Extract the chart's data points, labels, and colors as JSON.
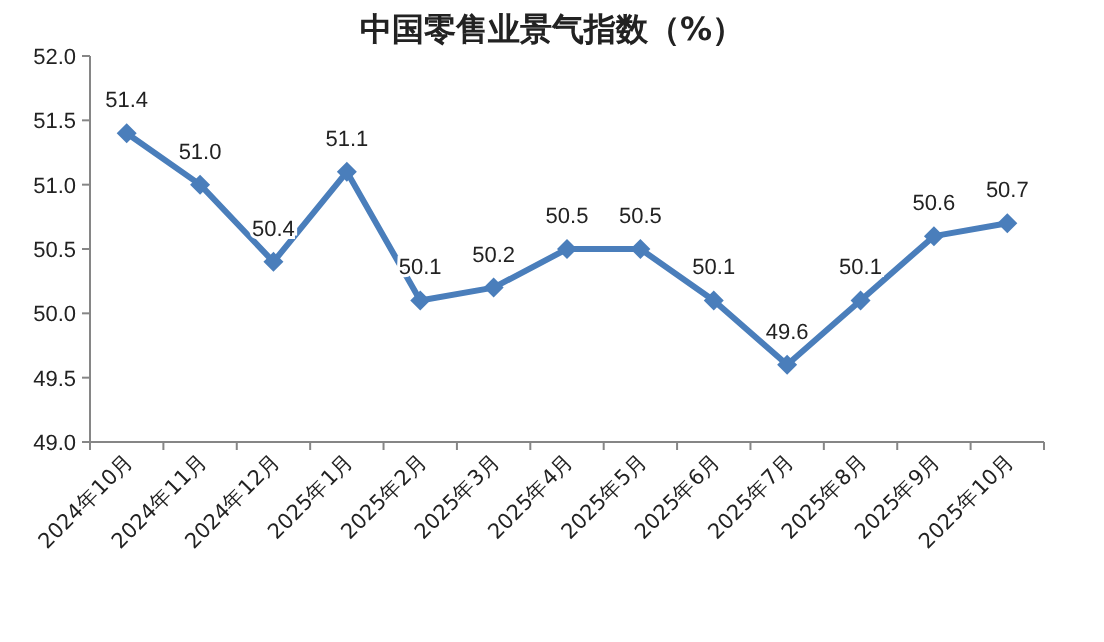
{
  "chart_data": {
    "type": "line",
    "title": "中国零售业景气指数（%）",
    "categories": [
      "2024年10月",
      "2024年11月",
      "2024年12月",
      "2025年1月",
      "2025年2月",
      "2025年3月",
      "2025年4月",
      "2025年5月",
      "2025年6月",
      "2025年7月",
      "2025年8月",
      "2025年9月",
      "2025年10月"
    ],
    "values": [
      51.4,
      51.0,
      50.4,
      51.1,
      50.1,
      50.2,
      50.5,
      50.5,
      50.1,
      49.6,
      50.1,
      50.6,
      50.7
    ],
    "value_labels": [
      "51.4",
      "51.0",
      "50.4",
      "51.1",
      "50.1",
      "50.2",
      "50.5",
      "50.5",
      "50.1",
      "49.6",
      "50.1",
      "50.6",
      "50.7"
    ],
    "color": "#4a7ebb",
    "marker": "diamond",
    "line_style": "solid",
    "ylim": [
      49,
      52
    ],
    "yticks": [
      {
        "value": 49,
        "label": "49.0"
      },
      {
        "value": 49.5,
        "label": "49.5"
      },
      {
        "value": 50,
        "label": "50.0"
      },
      {
        "value": 50.5,
        "label": "50.5"
      },
      {
        "value": 51,
        "label": "51.0"
      },
      {
        "value": 51.5,
        "label": "51.5"
      },
      {
        "value": 52,
        "label": "52.0"
      }
    ]
  }
}
